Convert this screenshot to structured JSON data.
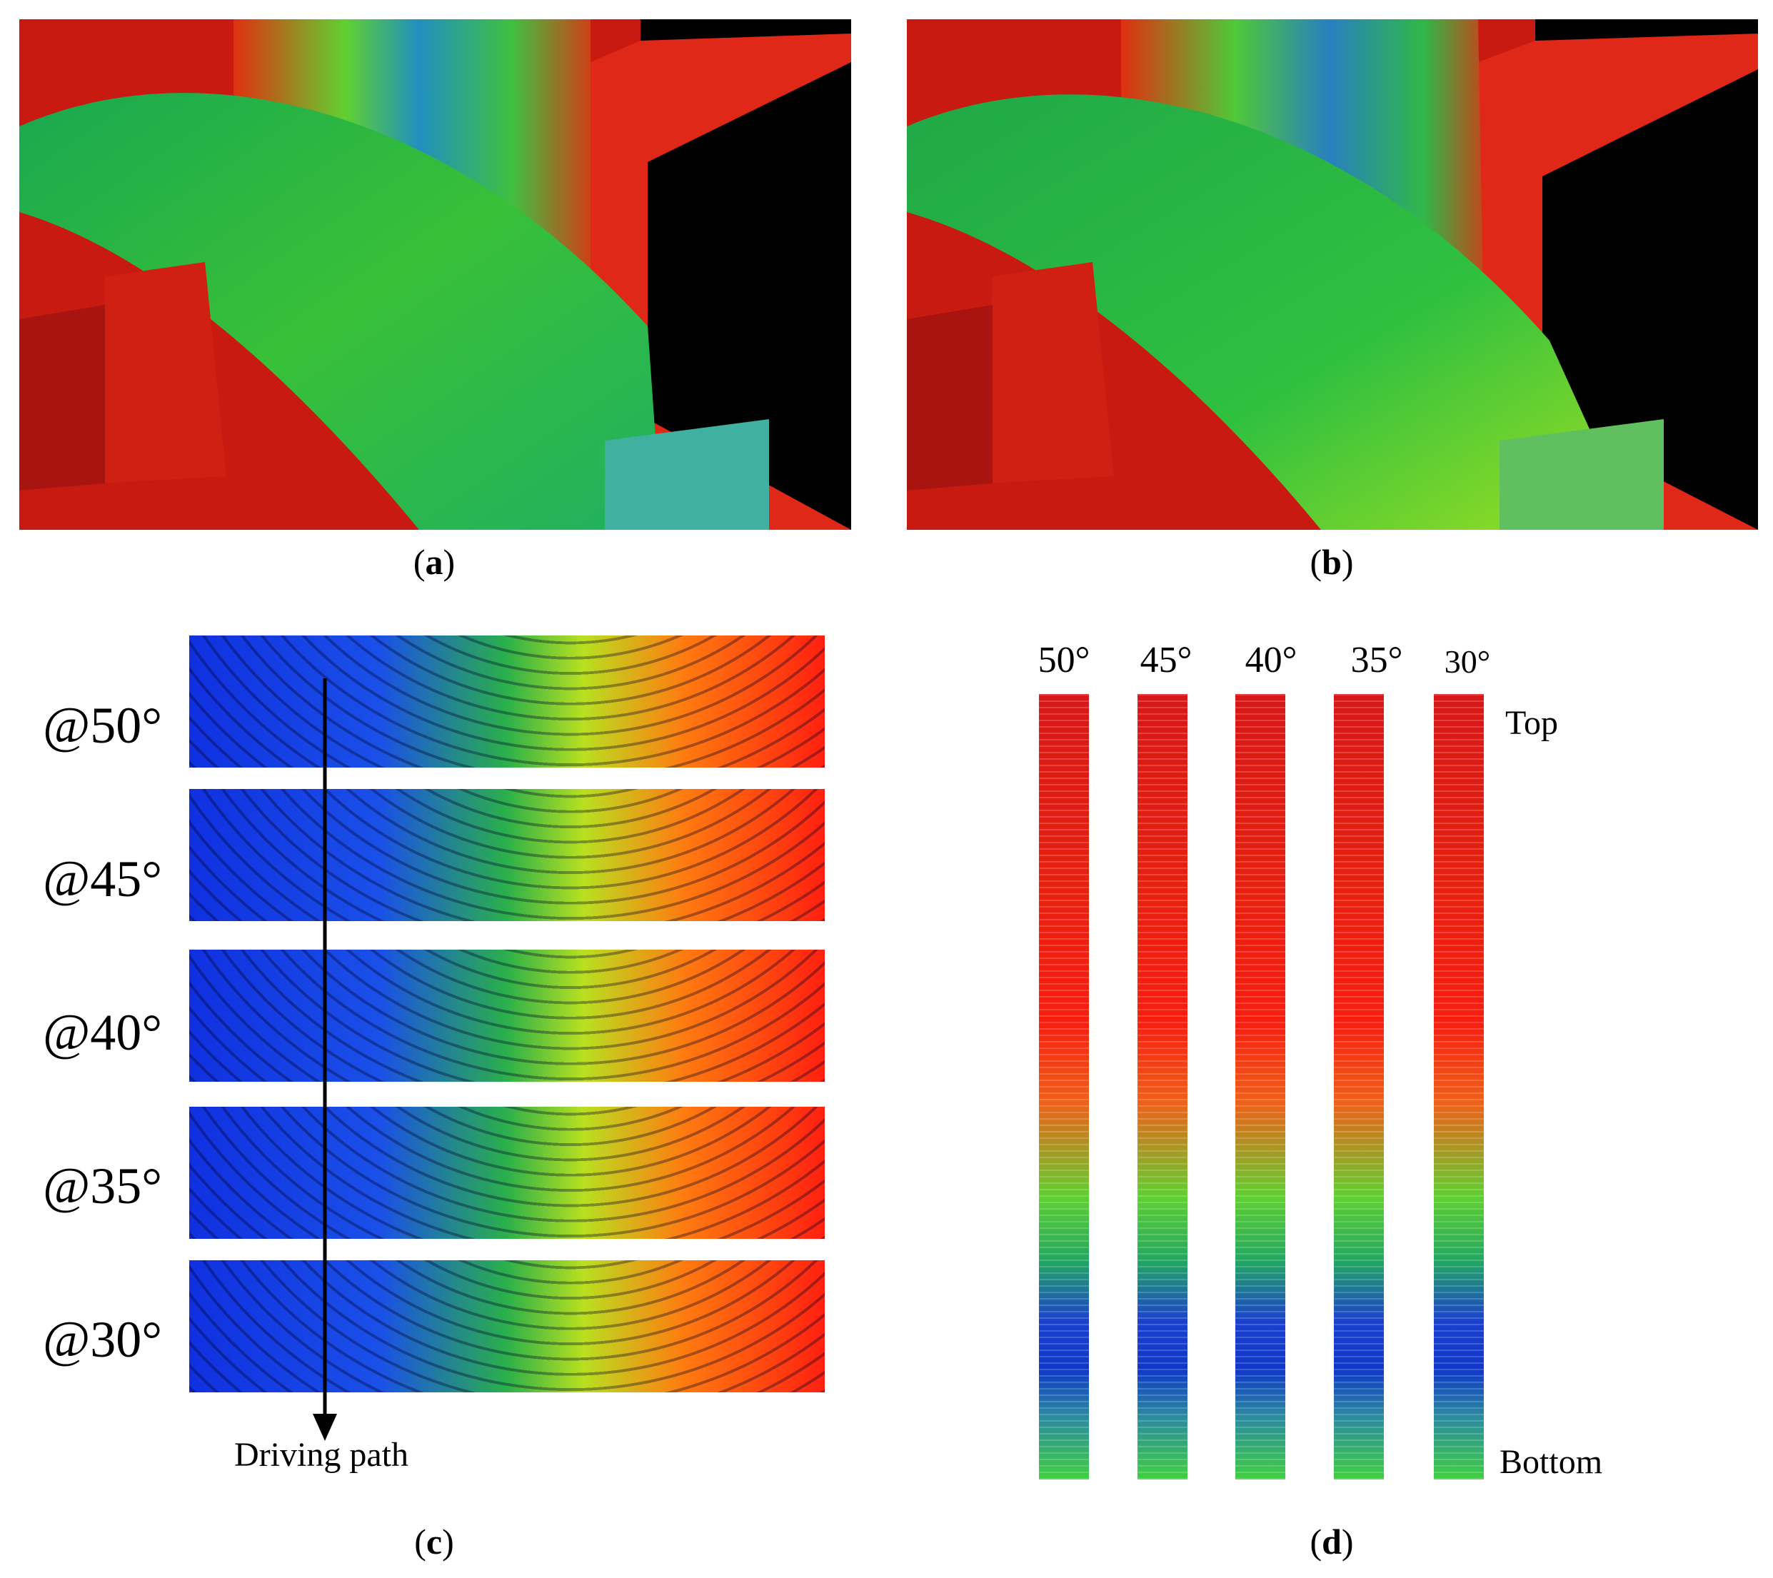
{
  "panels": {
    "a": {
      "label": "a"
    },
    "b": {
      "label": "b"
    },
    "c": {
      "label": "c",
      "strips": [
        {
          "angle_label": "@50°"
        },
        {
          "angle_label": "@45°"
        },
        {
          "angle_label": "@40°"
        },
        {
          "angle_label": "@35°"
        },
        {
          "angle_label": "@30°"
        }
      ],
      "arrow_label": "Driving path"
    },
    "d": {
      "label": "d",
      "columns": [
        {
          "angle_label": "50°"
        },
        {
          "angle_label": "45°"
        },
        {
          "angle_label": "40°"
        },
        {
          "angle_label": "35°"
        },
        {
          "angle_label": "30°"
        }
      ],
      "top_label": "Top",
      "bottom_label": "Bottom"
    }
  },
  "colors": {
    "high": "#ff2010",
    "mid": "#30c040",
    "low": "#1030e0",
    "background": "#000000"
  }
}
